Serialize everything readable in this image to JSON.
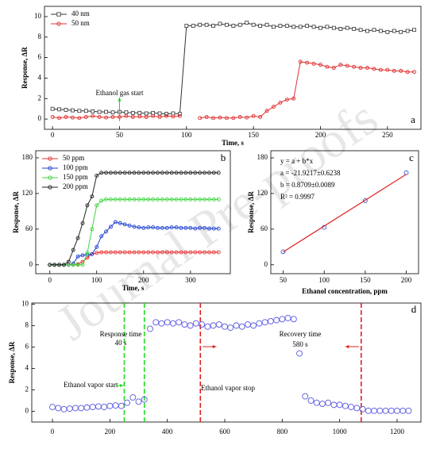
{
  "watermark": "Journal Pre-proofs",
  "chart_data": [
    {
      "type": "line",
      "panel": "a",
      "xlabel": "Time, s",
      "ylabel": "Response, ΔR",
      "xlim": [
        -6,
        275
      ],
      "ylim": [
        -1,
        11
      ],
      "xticks": [
        0,
        50,
        100,
        150,
        200,
        250
      ],
      "yticks": [
        0,
        2,
        4,
        6,
        8,
        10
      ],
      "legend": "top-left",
      "annotation": {
        "text": "Ethanol gas start",
        "x": 50,
        "color": "#22cc22"
      },
      "x": [
        0,
        5,
        10,
        15,
        20,
        25,
        30,
        35,
        40,
        45,
        50,
        55,
        60,
        65,
        70,
        75,
        80,
        85,
        90,
        95,
        100,
        105,
        110,
        115,
        120,
        125,
        130,
        135,
        140,
        145,
        150,
        155,
        160,
        165,
        170,
        175,
        180,
        185,
        190,
        195,
        200,
        205,
        210,
        215,
        220,
        225,
        230,
        235,
        240,
        245,
        250,
        255,
        260,
        265,
        270
      ],
      "series": [
        {
          "name": "40 nm",
          "color": "#333333",
          "marker": "square",
          "values": [
            1.0,
            0.95,
            0.9,
            0.85,
            0.8,
            0.8,
            0.75,
            0.7,
            0.7,
            0.65,
            0.7,
            0.65,
            0.6,
            0.6,
            0.55,
            0.6,
            0.55,
            0.5,
            0.55,
            0.5,
            9.1,
            9.1,
            9.2,
            9.2,
            9.1,
            9.3,
            9.2,
            9.1,
            9.2,
            9.4,
            9.2,
            9.1,
            9.2,
            9.0,
            9.1,
            9.1,
            9.0,
            9.0,
            9.1,
            9.0,
            8.9,
            9.0,
            8.9,
            8.8,
            8.9,
            8.8,
            8.7,
            8.6,
            8.7,
            8.6,
            8.5,
            8.6,
            8.5,
            8.6,
            8.7
          ]
        },
        {
          "name": "50 nm",
          "color": "#e03030",
          "marker": "circle",
          "values": [
            0.2,
            0.1,
            0.2,
            0.15,
            0.1,
            0.2,
            0.3,
            0.2,
            0.15,
            0.2,
            0.2,
            0.3,
            0.2,
            0.25,
            0.2,
            0.3,
            0.2,
            0.3,
            0.25,
            0.3,
            null,
            null,
            0.1,
            0.2,
            0.1,
            0.15,
            0.1,
            0.1,
            0.2,
            0.15,
            0.3,
            0.2,
            0.8,
            1.2,
            1.6,
            1.9,
            2.0,
            5.6,
            5.5,
            5.4,
            5.3,
            5.1,
            5.0,
            5.3,
            5.2,
            5.1,
            5.0,
            5.0,
            4.9,
            4.8,
            4.8,
            4.7,
            4.7,
            4.6,
            4.6
          ]
        }
      ]
    },
    {
      "type": "line",
      "panel": "b",
      "xlabel": "Time, s",
      "ylabel": "Response, ΔR",
      "xlim": [
        -30,
        385
      ],
      "ylim": [
        -15,
        192
      ],
      "xticks": [
        0,
        100,
        200,
        300
      ],
      "yticks": [
        0,
        60,
        120,
        180
      ],
      "legend": "top-left",
      "x": [
        0,
        10,
        20,
        30,
        40,
        50,
        60,
        70,
        80,
        90,
        100,
        110,
        120,
        130,
        140,
        150,
        160,
        170,
        180,
        190,
        200,
        210,
        220,
        230,
        240,
        250,
        260,
        270,
        280,
        290,
        300,
        310,
        320,
        330,
        340,
        350,
        360
      ],
      "series": [
        {
          "name": "50 ppm",
          "color": "#e83030",
          "marker": "circle",
          "values": [
            0,
            0,
            0,
            0,
            0,
            0,
            1,
            5,
            12,
            18,
            20,
            21,
            21,
            21,
            21,
            21,
            21,
            21,
            21,
            21,
            21,
            21,
            21,
            21,
            21,
            21,
            21,
            21,
            21,
            21,
            21,
            21,
            21,
            21,
            21,
            21,
            21
          ]
        },
        {
          "name": "100 ppm",
          "color": "#1f3fd0",
          "marker": "circle",
          "values": [
            0,
            0,
            0,
            0,
            0,
            2,
            14,
            16,
            17,
            18,
            30,
            48,
            56,
            64,
            72,
            70,
            68,
            66,
            64,
            63,
            62,
            63,
            63,
            62,
            62,
            62,
            63,
            63,
            62,
            62,
            62,
            61,
            62,
            62,
            61,
            61,
            61
          ]
        },
        {
          "name": "150 ppm",
          "color": "#3ed43e",
          "marker": "circle",
          "values": [
            0,
            0,
            0,
            0,
            0,
            0,
            0,
            0,
            20,
            60,
            100,
            108,
            110,
            110,
            110,
            110,
            110,
            110,
            110,
            110,
            110,
            110,
            110,
            110,
            110,
            110,
            110,
            110,
            110,
            110,
            110,
            110,
            110,
            110,
            110,
            110,
            110
          ]
        },
        {
          "name": "200 ppm",
          "color": "#222222",
          "marker": "circle",
          "values": [
            0,
            0,
            0,
            0,
            5,
            25,
            45,
            70,
            100,
            115,
            150,
            155,
            155,
            155,
            155,
            155,
            155,
            155,
            155,
            155,
            155,
            155,
            155,
            155,
            155,
            155,
            155,
            155,
            155,
            155,
            155,
            155,
            155,
            155,
            155,
            155,
            155
          ]
        }
      ]
    },
    {
      "type": "scatter",
      "panel": "c",
      "xlabel": "Ethanol concentration, ppm",
      "ylabel": "Response, ΔR",
      "xlim": [
        35,
        215
      ],
      "ylim": [
        -15,
        192
      ],
      "xticks": [
        50,
        100,
        150,
        200
      ],
      "yticks": [
        0,
        60,
        120,
        180
      ],
      "fit": {
        "intercept": -21.9217,
        "slope": 0.8709,
        "color": "#e02020"
      },
      "fit_text": [
        "y = a + b*x",
        "a = -21.9217±0.6238",
        "b = 0.8709±0.0089",
        "R² = 0.9997"
      ],
      "x": [
        50,
        100,
        150,
        200
      ],
      "series": [
        {
          "color": "#3050d0",
          "marker": "circle",
          "values": [
            22,
            63,
            108,
            155
          ]
        }
      ]
    },
    {
      "type": "scatter",
      "panel": "d",
      "ylabel": "Response, ΔR",
      "xlim": [
        -72,
        1283
      ],
      "ylim": [
        -1,
        10.1
      ],
      "xticks": [
        0,
        200,
        400,
        600,
        800,
        1000,
        1200
      ],
      "yticks": [
        0,
        2,
        4,
        6,
        8,
        10
      ],
      "markers": [
        {
          "x": 250,
          "color": "#22dd22"
        },
        {
          "x": 320,
          "color": "#22dd22"
        },
        {
          "x": 515,
          "color": "#e02020"
        },
        {
          "x": 1075,
          "color": "#e02020"
        }
      ],
      "annotations": [
        {
          "text": "Response time",
          "color": "#33bb33"
        },
        {
          "text": "40 s",
          "color": "#33bb33"
        },
        {
          "text": "Recovery time",
          "color": "#e02020"
        },
        {
          "text": "580 s",
          "color": "#e02020"
        },
        {
          "text": "Ethanol vapor start",
          "color": "#000000"
        },
        {
          "text": "Ethanol vapor stop",
          "color": "#000000"
        }
      ],
      "x": [
        0,
        20,
        40,
        60,
        80,
        100,
        120,
        140,
        160,
        180,
        200,
        220,
        240,
        260,
        280,
        300,
        320,
        340,
        360,
        380,
        400,
        420,
        440,
        460,
        480,
        500,
        520,
        540,
        560,
        580,
        600,
        620,
        640,
        660,
        680,
        700,
        720,
        740,
        760,
        780,
        800,
        820,
        840,
        860,
        880,
        900,
        920,
        940,
        960,
        980,
        1000,
        1020,
        1040,
        1060,
        1080,
        1100,
        1120,
        1140,
        1160,
        1180,
        1200,
        1220,
        1240
      ],
      "series": [
        {
          "color": "#5a5ae0",
          "marker": "circle",
          "values": [
            0.4,
            0.3,
            0.2,
            0.25,
            0.3,
            0.3,
            0.35,
            0.4,
            0.45,
            0.4,
            0.5,
            0.55,
            0.5,
            0.8,
            1.3,
            0.9,
            1.1,
            7.7,
            8.3,
            8.2,
            8.3,
            8.2,
            8.3,
            8.1,
            8.0,
            8.2,
            8.1,
            7.9,
            8.0,
            8.1,
            7.9,
            7.8,
            8.0,
            7.9,
            8.1,
            8.0,
            8.2,
            8.3,
            8.4,
            8.5,
            8.6,
            8.7,
            8.6,
            5.4,
            1.4,
            1.0,
            0.8,
            0.7,
            0.8,
            0.6,
            0.6,
            0.5,
            0.4,
            0.3,
            0.2,
            0.05,
            0.05,
            0.05,
            0.05,
            0.05,
            0.05,
            0.05,
            0.05
          ]
        }
      ]
    }
  ]
}
